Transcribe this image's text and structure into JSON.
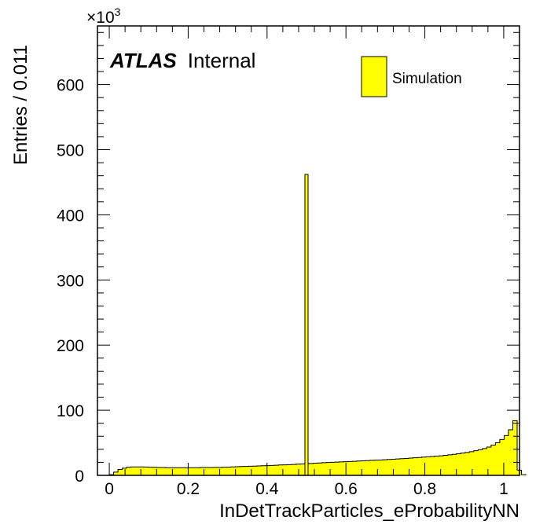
{
  "chart_data": {
    "type": "bar",
    "title": "",
    "xlabel": "InDetTrackParticles_eProbabilityNN",
    "ylabel": "Entries / 0.011",
    "y_multiplier_base": "×10",
    "y_multiplier_exp": "3",
    "xlim": [
      -0.03,
      1.04
    ],
    "ylim": [
      0,
      690
    ],
    "x_ticks": [
      {
        "value": 0,
        "label": "0"
      },
      {
        "value": 0.2,
        "label": "0.2"
      },
      {
        "value": 0.4,
        "label": "0.4"
      },
      {
        "value": 0.6,
        "label": "0.6"
      },
      {
        "value": 0.8,
        "label": "0.8"
      },
      {
        "value": 1,
        "label": "1"
      }
    ],
    "y_ticks": [
      {
        "value": 0,
        "label": "0"
      },
      {
        "value": 100,
        "label": "100"
      },
      {
        "value": 200,
        "label": "200"
      },
      {
        "value": 300,
        "label": "300"
      },
      {
        "value": 400,
        "label": "400"
      },
      {
        "value": 500,
        "label": "500"
      },
      {
        "value": 600,
        "label": "600"
      }
    ],
    "bin_width": 0.011,
    "x_start": 0.0,
    "series": [
      {
        "name": "Simulation",
        "color": "#ffff00",
        "values": [
          1,
          5,
          9,
          11,
          12.5,
          13,
          13,
          13,
          12.8,
          12.5,
          12.3,
          12,
          12,
          11.8,
          11.8,
          11.8,
          11.8,
          11.8,
          11.8,
          11.8,
          11.8,
          12,
          12,
          12,
          12.2,
          12.2,
          12.5,
          12.7,
          13,
          13.2,
          13.5,
          13.7,
          14,
          14.2,
          14.5,
          14.8,
          15,
          15.3,
          15.6,
          16,
          16.2,
          16.5,
          16.8,
          17.2,
          17.5,
          18,
          18.3,
          18.7,
          19,
          19.5,
          19.8,
          20,
          20.3,
          20.6,
          21,
          21.3,
          21.6,
          22,
          22.3,
          22.6,
          23,
          23.3,
          23.6,
          24,
          24.4,
          24.8,
          25.2,
          25.6,
          26,
          26.5,
          27,
          27.5,
          28,
          28.5,
          29,
          29.5,
          30,
          30.7,
          31.5,
          32.3,
          33.2,
          34.2,
          35.2,
          36.4,
          37.8,
          39.4,
          41.2,
          43.5,
          46.5,
          50,
          55,
          61,
          70,
          84,
          8,
          1
        ]
      }
    ],
    "spike": {
      "x": 0.5,
      "width": 0.008,
      "value": 462
    },
    "legend": {
      "position": "top-right",
      "entry": "Simulation"
    },
    "annotation": {
      "bold": "ATLAS",
      "normal": "Internal"
    },
    "grid": false
  }
}
